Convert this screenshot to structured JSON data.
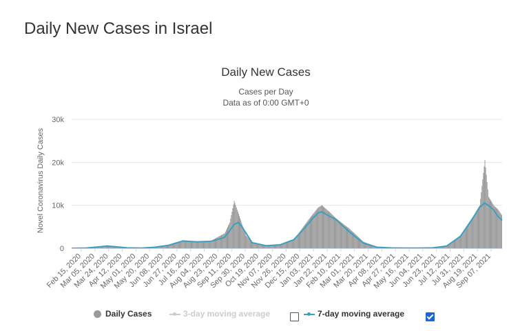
{
  "page": {
    "heading": "Daily New Cases in Israel"
  },
  "colors": {
    "bar": "#999999",
    "ma7": "#3a9fc0",
    "ma3_disabled": "#cccccc",
    "axis": "#ccd6eb",
    "grid": "#e6e6e6"
  },
  "chart_data": {
    "type": "bar",
    "title": "Daily New Cases",
    "subtitle": [
      "Cases per Day",
      "Data as of 0:00 GMT+0"
    ],
    "ylabel": "Novel Coronavirus Daily Cases",
    "xlabel": "",
    "ylim": [
      0,
      30000
    ],
    "yticks": [
      0,
      10000,
      20000,
      30000
    ],
    "ytick_labels": [
      "0",
      "10k",
      "20k",
      "30k"
    ],
    "grid": true,
    "legend_position": "bottom-center",
    "x_tick_labels": [
      "Feb 15, 2020",
      "Mar 05, 2020",
      "Mar 24, 2020",
      "Apr 12, 2020",
      "May 01, 2020",
      "May 20, 2020",
      "Jun 08, 2020",
      "Jun 27, 2020",
      "Jul 16, 2020",
      "Aug 04, 2020",
      "Aug 23, 2020",
      "Sep 11, 2020",
      "Sep 30, 2020",
      "Oct 19, 2020",
      "Nov 07, 2020",
      "Nov 26, 2020",
      "Dec 15, 2020",
      "Jan 03, 2021",
      "Jan 22, 2021",
      "Feb 10, 2021",
      "Mar 01, 2021",
      "Mar 20, 2021",
      "Apr 08, 2021",
      "Apr 27, 2021",
      "May 16, 2021",
      "Jun 04, 2021",
      "Jun 23, 2021",
      "Jul 12, 2021",
      "Jul 31, 2021",
      "Aug 19, 2021",
      "Sep 07, 2021"
    ],
    "x_start": "2020-02-15",
    "x_end": "2021-09-26",
    "series": [
      {
        "name": "Daily Cases",
        "type": "bar",
        "x": [
          "2020-02-15",
          "2020-03-05",
          "2020-03-24",
          "2020-04-03",
          "2020-04-12",
          "2020-05-01",
          "2020-05-20",
          "2020-06-08",
          "2020-06-27",
          "2020-07-16",
          "2020-08-04",
          "2020-08-23",
          "2020-09-11",
          "2020-09-18",
          "2020-09-24",
          "2020-09-30",
          "2020-10-10",
          "2020-10-19",
          "2020-11-07",
          "2020-11-26",
          "2020-12-15",
          "2021-01-03",
          "2021-01-10",
          "2021-01-17",
          "2021-01-22",
          "2021-02-01",
          "2021-02-10",
          "2021-03-01",
          "2021-03-20",
          "2021-04-08",
          "2021-04-27",
          "2021-05-16",
          "2021-06-04",
          "2021-06-23",
          "2021-07-12",
          "2021-07-31",
          "2021-08-19",
          "2021-08-26",
          "2021-09-02",
          "2021-09-07",
          "2021-09-14",
          "2021-09-20",
          "2021-09-26"
        ],
        "values": [
          0,
          50,
          400,
          700,
          500,
          100,
          50,
          200,
          800,
          1700,
          1600,
          1700,
          3500,
          6000,
          11000,
          8000,
          3000,
          1200,
          700,
          900,
          2000,
          6500,
          8000,
          9500,
          10000,
          8500,
          7000,
          4500,
          1500,
          300,
          100,
          50,
          30,
          150,
          600,
          3000,
          8000,
          10000,
          20500,
          12000,
          10000,
          9000,
          7500
        ]
      },
      {
        "name": "3-day moving average",
        "enabled": false
      },
      {
        "name": "7-day moving average",
        "type": "line",
        "enabled": true,
        "x": [
          "2020-02-15",
          "2020-03-05",
          "2020-03-24",
          "2020-04-03",
          "2020-04-12",
          "2020-05-01",
          "2020-05-20",
          "2020-06-08",
          "2020-06-27",
          "2020-07-16",
          "2020-08-04",
          "2020-08-23",
          "2020-09-11",
          "2020-09-18",
          "2020-09-24",
          "2020-09-30",
          "2020-10-05",
          "2020-10-19",
          "2020-11-07",
          "2020-11-26",
          "2020-12-15",
          "2021-01-03",
          "2021-01-10",
          "2021-01-17",
          "2021-01-22",
          "2021-02-01",
          "2021-02-10",
          "2021-03-01",
          "2021-03-20",
          "2021-04-08",
          "2021-04-27",
          "2021-05-16",
          "2021-06-04",
          "2021-06-23",
          "2021-07-12",
          "2021-07-31",
          "2021-08-19",
          "2021-08-26",
          "2021-09-02",
          "2021-09-07",
          "2021-09-14",
          "2021-09-20",
          "2021-09-26"
        ],
        "values": [
          0,
          30,
          350,
          500,
          400,
          100,
          40,
          250,
          700,
          1700,
          1500,
          1600,
          2500,
          4000,
          5500,
          6000,
          5000,
          1300,
          600,
          800,
          2000,
          5500,
          7000,
          8200,
          8500,
          7500,
          6800,
          3800,
          1200,
          250,
          80,
          40,
          30,
          100,
          500,
          2800,
          7500,
          9500,
          10500,
          10000,
          9000,
          7500,
          6500
        ]
      }
    ]
  },
  "legend": {
    "items": [
      {
        "label": "Daily Cases"
      },
      {
        "label": "3-day moving average",
        "checked": false
      },
      {
        "label": "7-day moving average",
        "checked": true
      }
    ]
  }
}
